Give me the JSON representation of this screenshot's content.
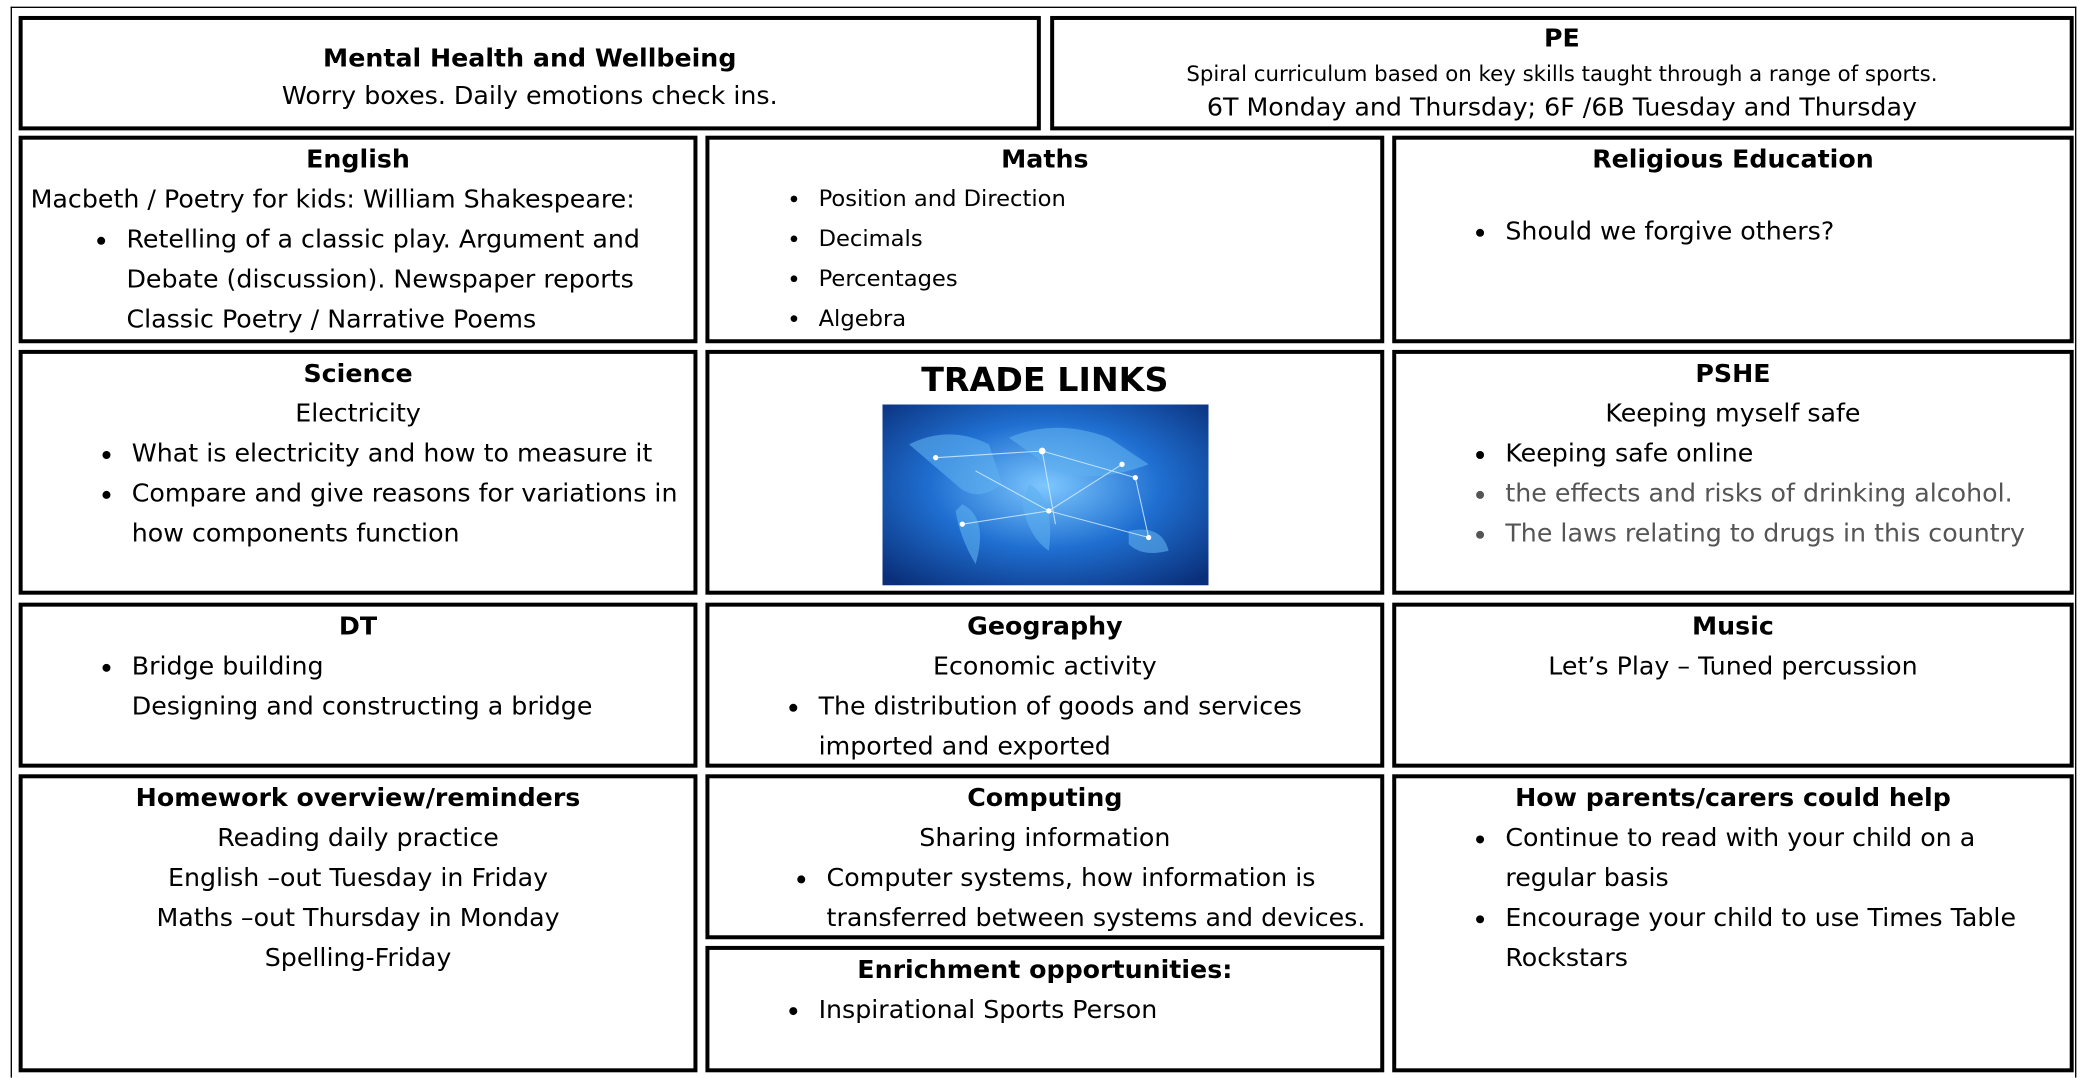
{
  "mental_health": {
    "title": "Mental Health and Wellbeing",
    "text": "Worry boxes. Daily emotions check ins."
  },
  "pe": {
    "title": "PE",
    "lines": [
      "Spiral curriculum based on key skills taught through a range of sports.",
      "6T Monday and Thursday; 6F /6B Tuesday and Thursday"
    ]
  },
  "english": {
    "title": "English",
    "intro": "Macbeth / Poetry for kids: William Shakespeare:",
    "bullets": [
      "Retelling of a classic play. Argument and Debate (discussion). Newspaper reports Classic Poetry / Narrative Poems"
    ]
  },
  "maths": {
    "title": "Maths",
    "bullets": [
      "Position and Direction",
      "Decimals",
      "Percentages",
      "Algebra"
    ]
  },
  "religious_education": {
    "title": "Religious Education",
    "bullets": [
      "Should we forgive others?"
    ]
  },
  "science": {
    "title": "Science",
    "subtitle": "Electricity",
    "bullets": [
      "What is electricity and how to measure it",
      "Compare and give reasons for variations in how components function"
    ]
  },
  "trade_links": {
    "title": "TRADE LINKS"
  },
  "pshe": {
    "title": "PSHE",
    "subtitle": "Keeping myself safe",
    "bullets": [
      "Keeping safe online",
      "the effects and risks of drinking alcohol.",
      "The laws relating to drugs in this country"
    ]
  },
  "dt": {
    "title": "DT",
    "bullets": [
      "Bridge building"
    ],
    "text": "Designing and constructing a bridge"
  },
  "geography": {
    "title": "Geography",
    "subtitle": "Economic activity",
    "bullets": [
      "The distribution of goods and services imported and exported"
    ]
  },
  "music": {
    "title": "Music",
    "subtitle": "Let’s Play – Tuned percussion"
  },
  "homework": {
    "title": "Homework overview/reminders",
    "lines": [
      "Reading daily practice",
      "English –out Tuesday in Friday",
      "Maths –out Thursday in Monday",
      "Spelling-Friday"
    ]
  },
  "computing": {
    "title": "Computing",
    "subtitle": "Sharing information",
    "bullets": [
      "Computer systems, how information is transferred between systems and devices."
    ]
  },
  "enrichment": {
    "title": "Enrichment opportunities:",
    "bullets": [
      "Inspirational Sports Person"
    ]
  },
  "parents_help": {
    "title": "How parents/carers could help",
    "bullets": [
      "Continue to read with your child on a regular basis",
      "Encourage your child to use Times Table Rockstars"
    ]
  }
}
